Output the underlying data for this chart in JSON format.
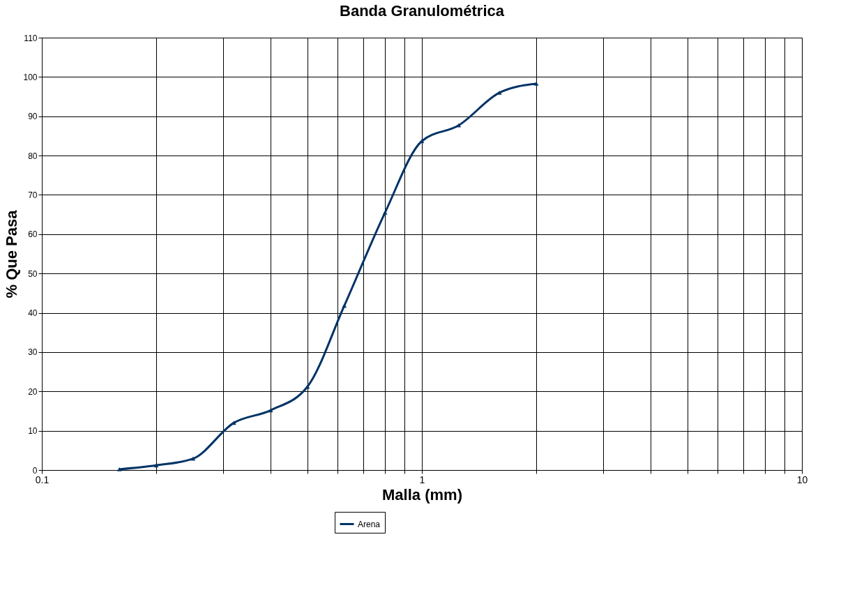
{
  "chart_data": {
    "type": "line",
    "title": "Banda Granulométrica",
    "xlabel": "Malla (mm)",
    "ylabel": "% Que Pasa",
    "log": "x",
    "grid": true,
    "legend": "bottom",
    "marker": "triangle",
    "line_style": "solid",
    "xlim": [
      0.1,
      10
    ],
    "xticks": [
      0.1,
      {
        "value": 0.2,
        "label": null
      },
      {
        "value": 0.3,
        "label": null
      },
      {
        "value": 0.4,
        "label": null
      },
      {
        "value": 0.5,
        "label": null
      },
      {
        "value": 0.6,
        "label": null
      },
      {
        "value": 0.7,
        "label": null
      },
      {
        "value": 0.8,
        "label": null
      },
      {
        "value": 0.9,
        "label": null
      },
      1,
      {
        "value": 2,
        "label": null
      },
      {
        "value": 3,
        "label": null
      },
      {
        "value": 4,
        "label": null
      },
      {
        "value": 5,
        "label": null
      },
      {
        "value": 6,
        "label": null
      },
      {
        "value": 7,
        "label": null
      },
      {
        "value": 8,
        "label": null
      },
      {
        "value": 9,
        "label": null
      },
      10
    ],
    "ylim": [
      0,
      110
    ],
    "yticks": [
      0,
      10,
      20,
      30,
      40,
      50,
      60,
      70,
      80,
      90,
      100,
      110
    ],
    "x": [
      0.16,
      0.2,
      0.25,
      0.32,
      0.4,
      0.5,
      0.625,
      0.8,
      1.0,
      1.25,
      1.6,
      2.0
    ],
    "series": [
      {
        "name": "Arena",
        "color": "#003366",
        "values": [
          0.2,
          1.2,
          2.9,
          12.0,
          15.2,
          21.2,
          41.8,
          65.5,
          83.7,
          87.7,
          96.0,
          98.3
        ]
      }
    ]
  }
}
